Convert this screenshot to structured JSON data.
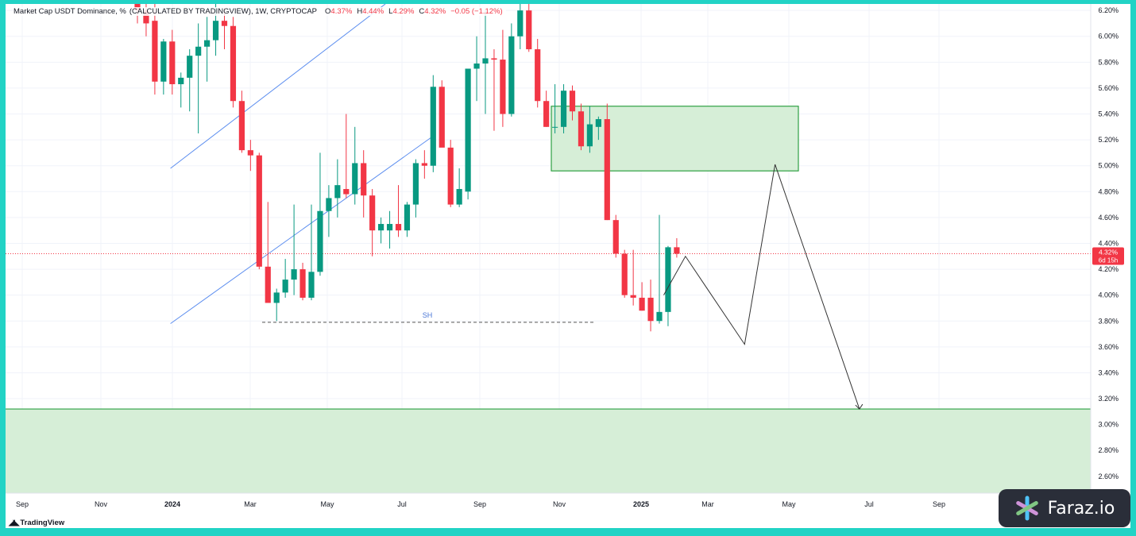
{
  "header": {
    "title": "Market Cap USDT Dominance, %",
    "source": "(CALCULATED BY TRADINGVIEW), 1W, CRYPTOCAP",
    "open_label": "O",
    "open": "4.37%",
    "high_label": "H",
    "high": "4.44%",
    "low_label": "L",
    "low": "4.29%",
    "close_label": "C",
    "close": "4.32%",
    "change": "−0.05 (−1.12%)"
  },
  "branding": {
    "tradingview": "TradingView",
    "watermark": "Faraz.io",
    "watermark_icon": "asterisk-logo-icon"
  },
  "colors": {
    "up": "#089981",
    "down": "#f23645",
    "zone": "#d6eed7",
    "zone_border": "#2ea043",
    "channel": "#5b8def",
    "projection": "#333333"
  },
  "chart_data": {
    "type": "candlestick",
    "timeframe": "1W",
    "y_axis": {
      "ticks": [
        "6.20%",
        "6.00%",
        "5.80%",
        "5.60%",
        "5.40%",
        "5.20%",
        "5.00%",
        "4.80%",
        "4.60%",
        "4.40%",
        "4.20%",
        "4.00%",
        "3.80%",
        "3.60%",
        "3.40%",
        "3.20%",
        "3.00%",
        "2.80%",
        "2.60%"
      ],
      "ylim": [
        2.47,
        6.25
      ]
    },
    "x_axis": {
      "ticks": [
        "Sep",
        "Nov",
        "2024",
        "Mar",
        "May",
        "Jul",
        "Sep",
        "Nov",
        "2025",
        "Mar",
        "May",
        "Jul",
        "Sep"
      ],
      "bold_ticks": [
        "2024",
        "2025"
      ],
      "first_tick": "2023-09-01"
    },
    "last_price": {
      "label": "4.32%",
      "countdown": "6d 15h",
      "value": 4.32
    },
    "candles": [
      {
        "o": 6.3,
        "h": 6.4,
        "l": 6.1,
        "c": 6.2
      },
      {
        "o": 6.2,
        "h": 6.38,
        "l": 6.0,
        "c": 6.1
      },
      {
        "o": 6.12,
        "h": 6.3,
        "l": 5.55,
        "c": 5.65
      },
      {
        "o": 5.65,
        "h": 5.98,
        "l": 5.55,
        "c": 5.96
      },
      {
        "o": 5.96,
        "h": 6.05,
        "l": 5.55,
        "c": 5.63
      },
      {
        "o": 5.63,
        "h": 5.72,
        "l": 5.45,
        "c": 5.68
      },
      {
        "o": 5.68,
        "h": 5.9,
        "l": 5.42,
        "c": 5.85
      },
      {
        "o": 5.85,
        "h": 6.1,
        "l": 5.25,
        "c": 5.92
      },
      {
        "o": 5.92,
        "h": 6.15,
        "l": 5.65,
        "c": 5.97
      },
      {
        "o": 5.97,
        "h": 6.25,
        "l": 5.85,
        "c": 6.12
      },
      {
        "o": 6.12,
        "h": 6.22,
        "l": 5.9,
        "c": 6.08
      },
      {
        "o": 6.08,
        "h": 6.15,
        "l": 5.45,
        "c": 5.5
      },
      {
        "o": 5.5,
        "h": 5.58,
        "l": 5.1,
        "c": 5.12
      },
      {
        "o": 5.12,
        "h": 5.2,
        "l": 4.96,
        "c": 5.08
      },
      {
        "o": 5.08,
        "h": 5.1,
        "l": 4.2,
        "c": 4.22
      },
      {
        "o": 4.22,
        "h": 4.72,
        "l": 3.95,
        "c": 3.94
      },
      {
        "o": 3.94,
        "h": 4.05,
        "l": 3.8,
        "c": 4.02
      },
      {
        "o": 4.02,
        "h": 4.28,
        "l": 3.98,
        "c": 4.12
      },
      {
        "o": 4.12,
        "h": 4.7,
        "l": 4.0,
        "c": 4.2
      },
      {
        "o": 4.2,
        "h": 4.25,
        "l": 3.96,
        "c": 3.98
      },
      {
        "o": 3.98,
        "h": 4.7,
        "l": 3.96,
        "c": 4.18
      },
      {
        "o": 4.18,
        "h": 5.1,
        "l": 4.15,
        "c": 4.65
      },
      {
        "o": 4.65,
        "h": 4.85,
        "l": 4.45,
        "c": 4.75
      },
      {
        "o": 4.75,
        "h": 5.05,
        "l": 4.6,
        "c": 4.85
      },
      {
        "o": 4.82,
        "h": 5.4,
        "l": 4.75,
        "c": 4.78
      },
      {
        "o": 4.78,
        "h": 5.3,
        "l": 4.7,
        "c": 5.02
      },
      {
        "o": 5.02,
        "h": 5.12,
        "l": 4.6,
        "c": 4.77
      },
      {
        "o": 4.77,
        "h": 4.82,
        "l": 4.3,
        "c": 4.5
      },
      {
        "o": 4.5,
        "h": 4.6,
        "l": 4.4,
        "c": 4.55
      },
      {
        "o": 4.5,
        "h": 4.65,
        "l": 4.36,
        "c": 4.55
      },
      {
        "o": 4.55,
        "h": 4.85,
        "l": 4.45,
        "c": 4.5
      },
      {
        "o": 4.5,
        "h": 4.72,
        "l": 4.45,
        "c": 4.7
      },
      {
        "o": 4.7,
        "h": 5.05,
        "l": 4.6,
        "c": 5.02
      },
      {
        "o": 5.02,
        "h": 5.12,
        "l": 4.9,
        "c": 5.0
      },
      {
        "o": 5.0,
        "h": 5.7,
        "l": 4.95,
        "c": 5.61
      },
      {
        "o": 5.61,
        "h": 5.66,
        "l": 5.15,
        "c": 5.14
      },
      {
        "o": 5.14,
        "h": 5.2,
        "l": 4.68,
        "c": 4.7
      },
      {
        "o": 4.7,
        "h": 4.98,
        "l": 4.68,
        "c": 4.82
      },
      {
        "o": 4.8,
        "h": 5.75,
        "l": 4.74,
        "c": 5.75
      },
      {
        "o": 5.75,
        "h": 6.0,
        "l": 5.5,
        "c": 5.79
      },
      {
        "o": 5.79,
        "h": 6.2,
        "l": 5.4,
        "c": 5.83
      },
      {
        "o": 5.83,
        "h": 5.9,
        "l": 5.27,
        "c": 5.82
      },
      {
        "o": 5.82,
        "h": 6.05,
        "l": 5.3,
        "c": 5.4
      },
      {
        "o": 5.4,
        "h": 6.1,
        "l": 5.38,
        "c": 6.0
      },
      {
        "o": 6.0,
        "h": 6.4,
        "l": 5.9,
        "c": 6.2
      },
      {
        "o": 6.2,
        "h": 6.25,
        "l": 5.88,
        "c": 5.9
      },
      {
        "o": 5.9,
        "h": 5.98,
        "l": 5.45,
        "c": 5.5
      },
      {
        "o": 5.5,
        "h": 5.58,
        "l": 5.3,
        "c": 5.3
      },
      {
        "o": 5.3,
        "h": 5.63,
        "l": 5.25,
        "c": 5.3
      },
      {
        "o": 5.3,
        "h": 5.63,
        "l": 5.25,
        "c": 5.58
      },
      {
        "o": 5.58,
        "h": 5.62,
        "l": 5.35,
        "c": 5.42
      },
      {
        "o": 5.42,
        "h": 5.48,
        "l": 5.12,
        "c": 5.15
      },
      {
        "o": 5.15,
        "h": 5.46,
        "l": 5.1,
        "c": 5.32
      },
      {
        "o": 5.3,
        "h": 5.38,
        "l": 5.2,
        "c": 5.36
      },
      {
        "o": 5.36,
        "h": 5.48,
        "l": 4.58,
        "c": 4.58
      },
      {
        "o": 4.58,
        "h": 4.62,
        "l": 4.29,
        "c": 4.32
      },
      {
        "o": 4.32,
        "h": 4.35,
        "l": 3.98,
        "c": 4.0
      },
      {
        "o": 4.0,
        "h": 4.35,
        "l": 3.92,
        "c": 3.98
      },
      {
        "o": 3.98,
        "h": 4.1,
        "l": 3.88,
        "c": 3.88
      },
      {
        "o": 3.98,
        "h": 4.12,
        "l": 3.72,
        "c": 3.8
      },
      {
        "o": 3.8,
        "h": 4.62,
        "l": 3.78,
        "c": 3.87
      },
      {
        "o": 3.87,
        "h": 4.38,
        "l": 3.76,
        "c": 4.37
      },
      {
        "o": 4.37,
        "h": 4.44,
        "l": 4.29,
        "c": 4.32
      }
    ],
    "annotations": {
      "sh_label": "SH",
      "sh_level": 3.79,
      "supply_zone": {
        "top": 5.46,
        "bottom": 4.96
      },
      "demand_zone": {
        "top": 3.12,
        "bottom": 2.47
      },
      "channel_upper": [
        [
          3.8,
          4.98
        ],
        [
          28.5,
          6.25
        ]
      ],
      "channel_lower": [
        [
          3.8,
          3.78
        ],
        [
          33.8,
          5.22
        ]
      ],
      "projection_path": [
        [
          60.5,
          4.0
        ],
        [
          63.0,
          4.3
        ],
        [
          69.8,
          3.62
        ],
        [
          73.3,
          5.01
        ],
        [
          83.0,
          3.12
        ]
      ]
    }
  }
}
